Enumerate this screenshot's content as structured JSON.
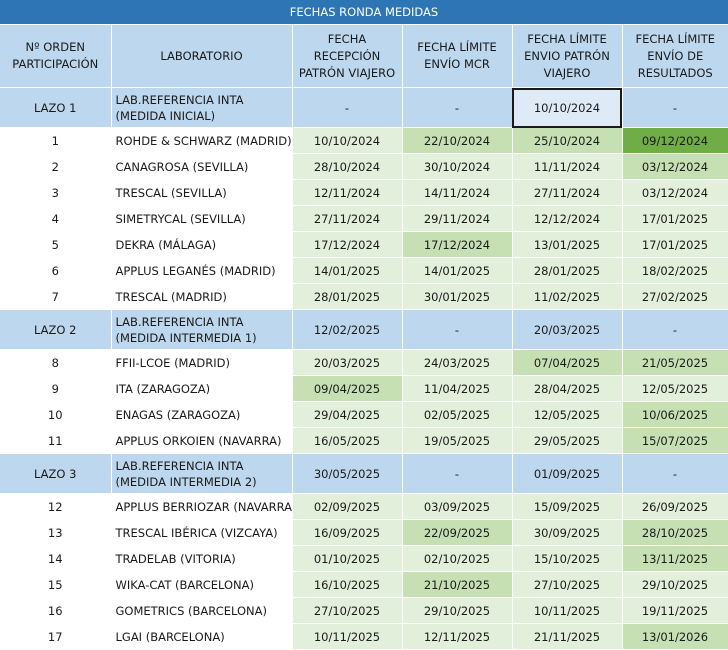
{
  "title": "FECHAS RONDA MEDIDAS",
  "headers": {
    "orden": "Nº ORDEN PARTICIPACIÓN",
    "laboratorio": "LABORATORIO",
    "recepcion": "FECHA RECEPCIÓN PATRÓN VIAJERO",
    "envio_mcr": "FECHA LÍMITE ENVÍO MCR",
    "envio_patron": "FECHA LÍMITE ENVIO PATRÓN VIAJERO",
    "envio_resultados": "FECHA LÍMITE ENVÍO DE RESULTADOS"
  },
  "colors": {
    "title_bg": "#2e75b6",
    "header_bg": "#bdd7ee",
    "light_green": "#e2efda",
    "mid_green": "#c6e0b4",
    "dark_green": "#70ad47"
  },
  "rows": [
    {
      "type": "lazo",
      "orden": "LAZO 1",
      "lab": "LAB.REFERENCIA INTA (MEDIDA INICIAL)",
      "recepcion": "-",
      "envio_mcr": "-",
      "envio_patron": "10/10/2024",
      "envio_resultados": "-"
    },
    {
      "type": "lab",
      "orden": "1",
      "lab": "ROHDE & SCHWARZ (MADRID)",
      "recepcion": "10/10/2024",
      "envio_mcr": "22/10/2024",
      "envio_patron": "25/10/2024",
      "envio_resultados": "09/12/2024"
    },
    {
      "type": "lab",
      "orden": "2",
      "lab": "CANAGROSA (SEVILLA)",
      "recepcion": "28/10/2024",
      "envio_mcr": "30/10/2024",
      "envio_patron": "11/11/2024",
      "envio_resultados": "03/12/2024"
    },
    {
      "type": "lab",
      "orden": "3",
      "lab": "TRESCAL (SEVILLA)",
      "recepcion": "12/11/2024",
      "envio_mcr": "14/11/2024",
      "envio_patron": "27/11/2024",
      "envio_resultados": "03/12/2024"
    },
    {
      "type": "lab",
      "orden": "4",
      "lab": "SIMETRYCAL (SEVILLA)",
      "recepcion": "27/11/2024",
      "envio_mcr": "29/11/2024",
      "envio_patron": "12/12/2024",
      "envio_resultados": "17/01/2025"
    },
    {
      "type": "lab",
      "orden": "5",
      "lab": "DEKRA (MÁLAGA)",
      "recepcion": "17/12/2024",
      "envio_mcr": "17/12/2024",
      "envio_patron": "13/01/2025",
      "envio_resultados": "17/01/2025"
    },
    {
      "type": "lab",
      "orden": "6",
      "lab": "APPLUS LEGANÉS (MADRID)",
      "recepcion": "14/01/2025",
      "envio_mcr": "14/01/2025",
      "envio_patron": "28/01/2025",
      "envio_resultados": "18/02/2025"
    },
    {
      "type": "lab",
      "orden": "7",
      "lab": "TRESCAL (MADRID)",
      "recepcion": "28/01/2025",
      "envio_mcr": "30/01/2025",
      "envio_patron": "11/02/2025",
      "envio_resultados": "27/02/2025"
    },
    {
      "type": "lazo",
      "orden": "LAZO 2",
      "lab": "LAB.REFERENCIA INTA (MEDIDA INTERMEDIA 1)",
      "recepcion": "12/02/2025",
      "envio_mcr": "-",
      "envio_patron": "20/03/2025",
      "envio_resultados": "-"
    },
    {
      "type": "lab",
      "orden": "8",
      "lab": "FFII-LCOE (MADRID)",
      "recepcion": "20/03/2025",
      "envio_mcr": "24/03/2025",
      "envio_patron": "07/04/2025",
      "envio_resultados": "21/05/2025"
    },
    {
      "type": "lab",
      "orden": "9",
      "lab": "ITA (ZARAGOZA)",
      "recepcion": "09/04/2025",
      "envio_mcr": "11/04/2025",
      "envio_patron": "28/04/2025",
      "envio_resultados": "12/05/2025"
    },
    {
      "type": "lab",
      "orden": "10",
      "lab": "ENAGAS (ZARAGOZA)",
      "recepcion": "29/04/2025",
      "envio_mcr": "02/05/2025",
      "envio_patron": "12/05/2025",
      "envio_resultados": "10/06/2025"
    },
    {
      "type": "lab",
      "orden": "11",
      "lab": "APPLUS ORKOIEN (NAVARRA)",
      "recepcion": "16/05/2025",
      "envio_mcr": "19/05/2025",
      "envio_patron": "29/05/2025",
      "envio_resultados": "15/07/2025"
    },
    {
      "type": "lazo",
      "orden": "LAZO 3",
      "lab": "LAB.REFERENCIA INTA (MEDIDA INTERMEDIA 2)",
      "recepcion": "30/05/2025",
      "envio_mcr": "-",
      "envio_patron": "01/09/2025",
      "envio_resultados": "-"
    },
    {
      "type": "lab",
      "orden": "12",
      "lab": "APPLUS BERRIOZAR (NAVARRA)",
      "recepcion": "02/09/2025",
      "envio_mcr": "03/09/2025",
      "envio_patron": "15/09/2025",
      "envio_resultados": "26/09/2025"
    },
    {
      "type": "lab",
      "orden": "13",
      "lab": "TRESCAL IBÉRICA (VIZCAYA)",
      "recepcion": "16/09/2025",
      "envio_mcr": "22/09/2025",
      "envio_patron": "30/09/2025",
      "envio_resultados": "28/10/2025"
    },
    {
      "type": "lab",
      "orden": "14",
      "lab": "TRADELAB (VITORIA)",
      "recepcion": "01/10/2025",
      "envio_mcr": "02/10/2025",
      "envio_patron": "15/10/2025",
      "envio_resultados": "13/11/2025"
    },
    {
      "type": "lab",
      "orden": "15",
      "lab": "WIKA-CAT (BARCELONA)",
      "recepcion": "16/10/2025",
      "envio_mcr": "21/10/2025",
      "envio_patron": "27/10/2025",
      "envio_resultados": "29/10/2025"
    },
    {
      "type": "lab",
      "orden": "16",
      "lab": "GOMETRICS (BARCELONA)",
      "recepcion": "27/10/2025",
      "envio_mcr": "29/10/2025",
      "envio_patron": "10/11/2025",
      "envio_resultados": "19/11/2025"
    },
    {
      "type": "lab",
      "orden": "17",
      "lab": "LGAI (BARCELONA)",
      "recepcion": "10/11/2025",
      "envio_mcr": "12/11/2025",
      "envio_patron": "21/11/2025",
      "envio_resultados": "13/01/2026"
    }
  ]
}
